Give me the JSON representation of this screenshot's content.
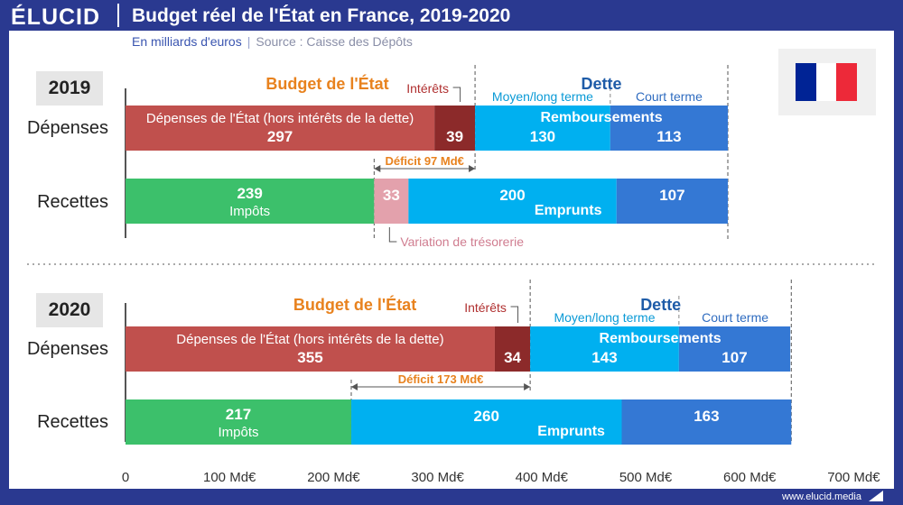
{
  "header": {
    "logo": "ÉLUCID",
    "title": "Budget réel de l'État en France, 2019-2020",
    "subtitle_unit": "En milliards d'euros",
    "subtitle_sep": "|",
    "subtitle_source": "Source : Caisse des Dépôts"
  },
  "footer": {
    "website": "www.elucid.media"
  },
  "colors": {
    "depenses": "#c0504d",
    "interets": "#8c2a2a",
    "moyen_long": "#00b0f0",
    "court": "#3478d4",
    "impots": "#3cc06b",
    "tresorerie": "#e3a1ac",
    "budget_label": "#e8821e",
    "dette_label": "#1f5ca8",
    "deficit_label": "#e8821e",
    "flag_blue": "#002395",
    "flag_white": "#ffffff",
    "flag_red": "#ed2939"
  },
  "chart_data": {
    "type": "bar",
    "orientation": "horizontal-stacked",
    "title": "Budget réel de l'État en France, 2019-2020",
    "unit": "Md€",
    "xlim": [
      0,
      700
    ],
    "x_ticks": [
      "0",
      "100 Md€",
      "200 Md€",
      "300 Md€",
      "400 Md€",
      "500 Md€",
      "600 Md€",
      "700 Md€"
    ],
    "x_tick_values": [
      0,
      100,
      200,
      300,
      400,
      500,
      600,
      700
    ],
    "panels": [
      {
        "year": "2019",
        "budget_label": "Budget de l'État",
        "dette_label": "Dette",
        "interets_label": "Intérêts",
        "moyen_long_label": "Moyen/long terme",
        "court_label": "Court terme",
        "deficit_label": "Déficit 97 Md€",
        "deficit_range": [
          239,
          336
        ],
        "tresorerie_label": "Variation de trésorerie",
        "rows": [
          {
            "name": "Dépenses",
            "segments": [
              {
                "key": "depenses",
                "value": 297,
                "label": "Dépenses de l'État (hors intérêts de la dette)",
                "value_text": "297"
              },
              {
                "key": "interets",
                "value": 39,
                "value_text": "39"
              },
              {
                "key": "moyen_long",
                "value": 130,
                "value_text": "130"
              },
              {
                "key": "court",
                "value": 113,
                "value_text": "113"
              }
            ],
            "group_label": "Remboursements"
          },
          {
            "name": "Recettes",
            "segments": [
              {
                "key": "impots",
                "value": 239,
                "label": "Impôts",
                "value_text": "239"
              },
              {
                "key": "tresorerie",
                "value": 33,
                "value_text": "33"
              },
              {
                "key": "moyen_long",
                "value": 200,
                "value_text": "200"
              },
              {
                "key": "court",
                "value": 107,
                "value_text": "107"
              }
            ],
            "group_label": "Emprunts"
          }
        ]
      },
      {
        "year": "2020",
        "budget_label": "Budget de l'État",
        "dette_label": "Dette",
        "interets_label": "Intérêts",
        "moyen_long_label": "Moyen/long terme",
        "court_label": "Court terme",
        "deficit_label": "Déficit 173 Md€",
        "deficit_range": [
          217,
          389
        ],
        "rows": [
          {
            "name": "Dépenses",
            "segments": [
              {
                "key": "depenses",
                "value": 355,
                "label": "Dépenses de l'État (hors intérêts de la dette)",
                "value_text": "355"
              },
              {
                "key": "interets",
                "value": 34,
                "value_text": "34"
              },
              {
                "key": "moyen_long",
                "value": 143,
                "value_text": "143"
              },
              {
                "key": "court",
                "value": 107,
                "value_text": "107"
              }
            ],
            "group_label": "Remboursements"
          },
          {
            "name": "Recettes",
            "segments": [
              {
                "key": "impots",
                "value": 217,
                "label": "Impôts",
                "value_text": "217"
              },
              {
                "key": "moyen_long",
                "value": 260,
                "value_text": "260"
              },
              {
                "key": "court",
                "value": 163,
                "value_text": "163"
              }
            ],
            "group_label": "Emprunts"
          }
        ]
      }
    ]
  }
}
